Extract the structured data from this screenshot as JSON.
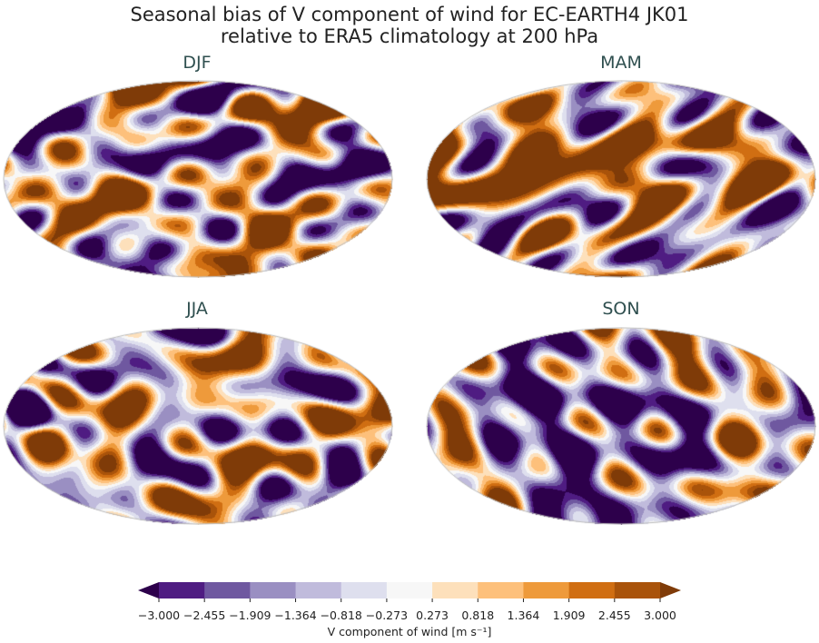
{
  "title_line1": "Seasonal bias of V component of wind for EC-EARTH4 JK01",
  "title_line2": "relative to ERA5 climatology at 200 hPa",
  "panels": [
    {
      "label": "DJF",
      "seed": 1
    },
    {
      "label": "MAM",
      "seed": 2
    },
    {
      "label": "JJA",
      "seed": 3
    },
    {
      "label": "SON",
      "seed": 4
    }
  ],
  "colorbar": {
    "label": "V component of wind [m s⁻¹]",
    "ticks": [
      "−3.000",
      "−2.455",
      "−1.909",
      "−1.364",
      "−0.818",
      "−0.273",
      "0.273",
      "0.818",
      "1.364",
      "1.909",
      "2.455",
      "3.000"
    ],
    "levels": [
      -3.0,
      -2.455,
      -1.909,
      -1.364,
      -0.818,
      -0.273,
      0.273,
      0.818,
      1.364,
      1.909,
      2.455,
      3.0
    ],
    "colors": [
      "#2d004b",
      "#4f1c82",
      "#6f58a0",
      "#9a8fc2",
      "#c0bbdc",
      "#dedfee",
      "#f7f7f7",
      "#fde0bb",
      "#fdc07b",
      "#ee9a3b",
      "#d06e12",
      "#a9530a",
      "#7f3b08"
    ],
    "extend": "both"
  }
}
